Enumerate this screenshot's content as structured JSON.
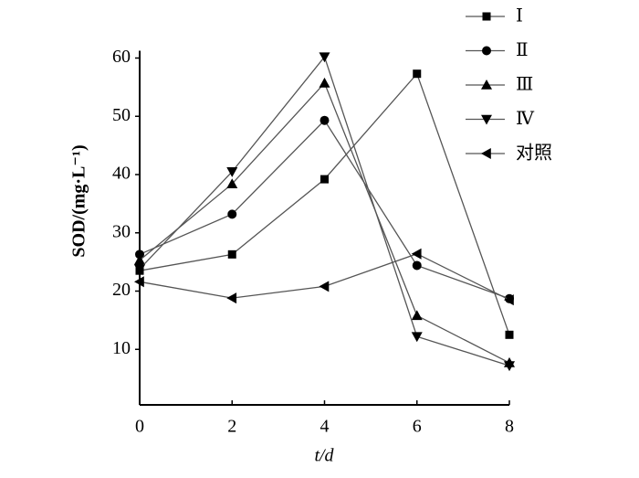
{
  "chart_data": {
    "type": "line",
    "x": [
      0,
      2,
      4,
      6,
      8
    ],
    "xlim": [
      0,
      8
    ],
    "xticks": [
      0,
      2,
      4,
      6,
      8
    ],
    "ylim": [
      0,
      60
    ],
    "yticks": [
      10,
      20,
      30,
      40,
      50,
      60
    ],
    "xlabel": "t/d",
    "ylabel": "SOD/(mg·L⁻¹)",
    "series": [
      {
        "name": "Ⅰ",
        "color": "#000000",
        "marker": "square",
        "values": [
          23.5,
          26.3,
          39.2,
          57.3,
          12.5
        ]
      },
      {
        "name": "Ⅱ",
        "color": "#000000",
        "marker": "circle",
        "values": [
          26.3,
          33.2,
          49.3,
          24.4,
          18.7
        ]
      },
      {
        "name": "Ⅲ",
        "color": "#000000",
        "marker": "triangle-up",
        "values": [
          25.3,
          38.4,
          55.7,
          15.8,
          7.7
        ]
      },
      {
        "name": "Ⅳ",
        "color": "#000000",
        "marker": "triangle-down",
        "values": [
          23.8,
          40.5,
          60.2,
          12.2,
          7.2
        ]
      },
      {
        "name": "对照",
        "color": "#000000",
        "marker": "triangle-left",
        "values": [
          21.6,
          18.8,
          20.8,
          26.4,
          18.5
        ]
      }
    ],
    "legend": "top-right"
  }
}
